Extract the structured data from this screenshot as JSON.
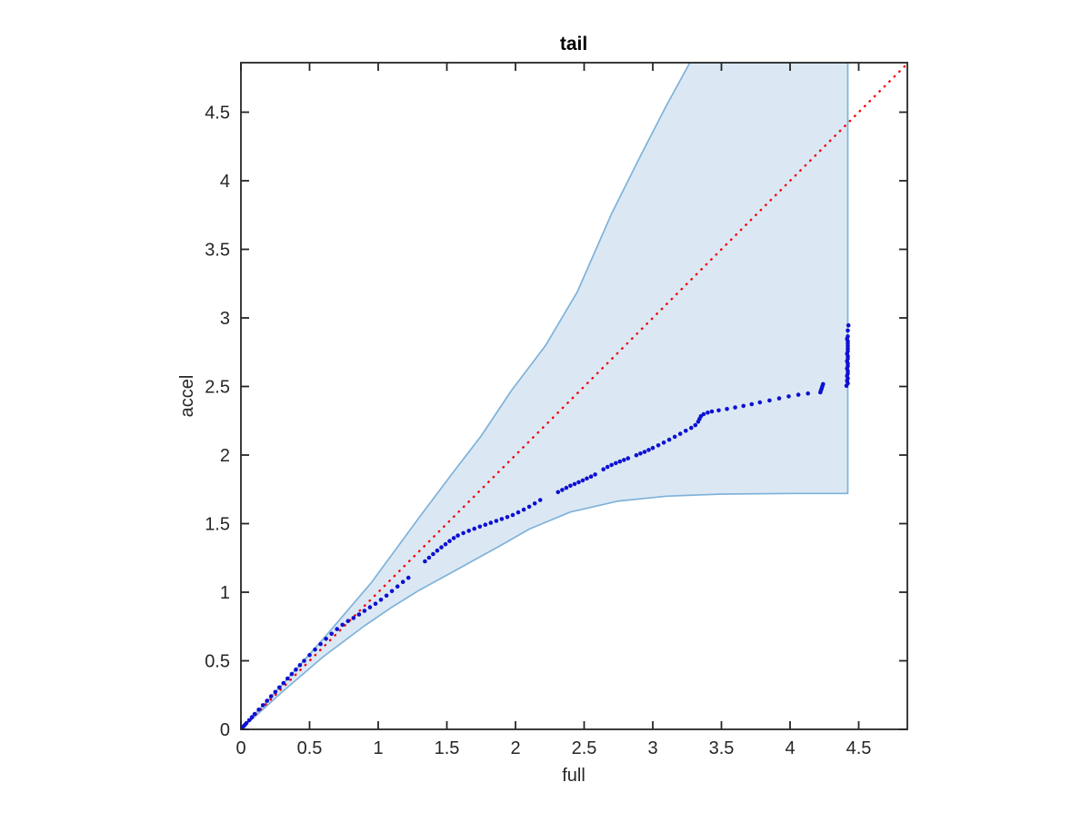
{
  "figure": {
    "title": "tail",
    "xlabel": "full",
    "ylabel": "accel"
  },
  "colors": {
    "band_fill": "#dbe8f4",
    "band_edge": "#7fb2d9",
    "point_color": "#0e10d2",
    "reference_line_color": "#f40000",
    "axis_color": "#262626",
    "background": "#ffffff"
  },
  "chart_data": {
    "type": "scatter",
    "title": "tail",
    "xlabel": "full",
    "ylabel": "accel",
    "xlim": [
      0,
      4.854
    ],
    "ylim": [
      0,
      4.861
    ],
    "grid": false,
    "legend_position": "none",
    "x_tick_values": [
      0,
      0.5,
      1,
      1.5,
      2,
      2.5,
      3,
      3.5,
      4,
      4.5
    ],
    "x_tick_labels": [
      "0",
      "0.5",
      "1",
      "1.5",
      "2",
      "2.5",
      "3",
      "3.5",
      "4",
      "4.5"
    ],
    "y_tick_values": [
      0,
      0.5,
      1,
      1.5,
      2,
      2.5,
      3,
      3.5,
      4,
      4.5
    ],
    "y_tick_labels": [
      "0",
      "0.5",
      "1",
      "1.5",
      "2",
      "2.5",
      "3",
      "3.5",
      "4",
      "4.5"
    ],
    "reference_line": {
      "name": "identity y = x",
      "style": "dotted",
      "color": "#f40000",
      "from": [
        0,
        0
      ],
      "to": [
        4.854,
        4.854
      ]
    },
    "confidence_band": {
      "fill": "#dbe8f4",
      "edge": "#7fb2d9",
      "right_edge_x": 4.42,
      "top_y": 4.861,
      "upper_envelope": [
        [
          0,
          0
        ],
        [
          0.3,
          0.325
        ],
        [
          0.6,
          0.66
        ],
        [
          0.95,
          1.07
        ],
        [
          1.31,
          1.56
        ],
        [
          1.55,
          1.88
        ],
        [
          1.75,
          2.14
        ],
        [
          1.97,
          2.47
        ],
        [
          2.22,
          2.8
        ],
        [
          2.45,
          3.19
        ],
        [
          2.7,
          3.76
        ],
        [
          2.9,
          4.16
        ],
        [
          3.1,
          4.55
        ],
        [
          3.27,
          4.861
        ]
      ],
      "lower_envelope": [
        [
          0,
          0
        ],
        [
          0.3,
          0.272
        ],
        [
          0.6,
          0.53
        ],
        [
          0.9,
          0.755
        ],
        [
          1.09,
          0.885
        ],
        [
          1.3,
          1.015
        ],
        [
          1.62,
          1.19
        ],
        [
          1.9,
          1.345
        ],
        [
          2.1,
          1.46
        ],
        [
          2.4,
          1.585
        ],
        [
          2.75,
          1.665
        ],
        [
          3.1,
          1.7
        ],
        [
          3.5,
          1.715
        ],
        [
          4.0,
          1.72
        ],
        [
          4.42,
          1.72
        ]
      ]
    },
    "series": [
      {
        "name": "tail vs full quantiles",
        "marker": "dot",
        "color": "#0e10d2",
        "points": [
          [
            0.005,
            0.006
          ],
          [
            0.01,
            0.012
          ],
          [
            0.02,
            0.023
          ],
          [
            0.03,
            0.034
          ],
          [
            0.04,
            0.045
          ],
          [
            0.06,
            0.067
          ],
          [
            0.08,
            0.089
          ],
          [
            0.1,
            0.112
          ],
          [
            0.13,
            0.144
          ],
          [
            0.16,
            0.176
          ],
          [
            0.19,
            0.208
          ],
          [
            0.22,
            0.241
          ],
          [
            0.25,
            0.273
          ],
          [
            0.28,
            0.306
          ],
          [
            0.31,
            0.338
          ],
          [
            0.34,
            0.371
          ],
          [
            0.37,
            0.403
          ],
          [
            0.4,
            0.436
          ],
          [
            0.43,
            0.468
          ],
          [
            0.46,
            0.5
          ],
          [
            0.5,
            0.542
          ],
          [
            0.54,
            0.582
          ],
          [
            0.58,
            0.622
          ],
          [
            0.62,
            0.66
          ],
          [
            0.66,
            0.697
          ],
          [
            0.7,
            0.731
          ],
          [
            0.74,
            0.762
          ],
          [
            0.78,
            0.79
          ],
          [
            0.82,
            0.812
          ],
          [
            0.86,
            0.838
          ],
          [
            0.9,
            0.864
          ],
          [
            0.94,
            0.89
          ],
          [
            0.98,
            0.916
          ],
          [
            1.02,
            0.945
          ],
          [
            1.06,
            0.975
          ],
          [
            1.1,
            1.008
          ],
          [
            1.14,
            1.042
          ],
          [
            1.18,
            1.075
          ],
          [
            1.22,
            1.105
          ],
          [
            1.34,
            1.225
          ],
          [
            1.37,
            1.252
          ],
          [
            1.4,
            1.278
          ],
          [
            1.43,
            1.303
          ],
          [
            1.46,
            1.327
          ],
          [
            1.49,
            1.35
          ],
          [
            1.52,
            1.373
          ],
          [
            1.55,
            1.395
          ],
          [
            1.58,
            1.413
          ],
          [
            1.62,
            1.431
          ],
          [
            1.66,
            1.448
          ],
          [
            1.7,
            1.463
          ],
          [
            1.74,
            1.478
          ],
          [
            1.78,
            1.492
          ],
          [
            1.82,
            1.506
          ],
          [
            1.86,
            1.52
          ],
          [
            1.9,
            1.534
          ],
          [
            1.94,
            1.548
          ],
          [
            1.98,
            1.563
          ],
          [
            2.02,
            1.582
          ],
          [
            2.06,
            1.602
          ],
          [
            2.1,
            1.623
          ],
          [
            2.14,
            1.647
          ],
          [
            2.18,
            1.672
          ],
          [
            2.31,
            1.73
          ],
          [
            2.34,
            1.746
          ],
          [
            2.37,
            1.761
          ],
          [
            2.4,
            1.776
          ],
          [
            2.43,
            1.789
          ],
          [
            2.46,
            1.802
          ],
          [
            2.49,
            1.815
          ],
          [
            2.52,
            1.829
          ],
          [
            2.55,
            1.843
          ],
          [
            2.58,
            1.858
          ],
          [
            2.64,
            1.896
          ],
          [
            2.67,
            1.913
          ],
          [
            2.7,
            1.928
          ],
          [
            2.73,
            1.941
          ],
          [
            2.76,
            1.953
          ],
          [
            2.79,
            1.964
          ],
          [
            2.82,
            1.976
          ],
          [
            2.88,
            1.999
          ],
          [
            2.91,
            2.011
          ],
          [
            2.94,
            2.023
          ],
          [
            2.97,
            2.037
          ],
          [
            3.0,
            2.052
          ],
          [
            3.04,
            2.071
          ],
          [
            3.08,
            2.091
          ],
          [
            3.12,
            2.112
          ],
          [
            3.16,
            2.133
          ],
          [
            3.2,
            2.155
          ],
          [
            3.24,
            2.177
          ],
          [
            3.28,
            2.198
          ],
          [
            3.31,
            2.218
          ],
          [
            3.33,
            2.243
          ],
          [
            3.34,
            2.263
          ],
          [
            3.35,
            2.283
          ],
          [
            3.37,
            2.298
          ],
          [
            3.4,
            2.309
          ],
          [
            3.43,
            2.318
          ],
          [
            3.48,
            2.326
          ],
          [
            3.54,
            2.336
          ],
          [
            3.6,
            2.347
          ],
          [
            3.66,
            2.358
          ],
          [
            3.72,
            2.371
          ],
          [
            3.78,
            2.384
          ],
          [
            3.85,
            2.398
          ],
          [
            3.92,
            2.413
          ],
          [
            3.99,
            2.428
          ],
          [
            4.06,
            2.44
          ],
          [
            4.13,
            2.449
          ],
          [
            4.22,
            2.457
          ],
          [
            4.225,
            2.472
          ],
          [
            4.23,
            2.487
          ],
          [
            4.235,
            2.502
          ],
          [
            4.24,
            2.517
          ],
          [
            4.41,
            2.505
          ],
          [
            4.42,
            2.523
          ],
          [
            4.415,
            2.541
          ],
          [
            4.42,
            2.559
          ],
          [
            4.415,
            2.577
          ],
          [
            4.42,
            2.595
          ],
          [
            4.42,
            2.613
          ],
          [
            4.415,
            2.631
          ],
          [
            4.42,
            2.649
          ],
          [
            4.42,
            2.667
          ],
          [
            4.415,
            2.685
          ],
          [
            4.42,
            2.703
          ],
          [
            4.42,
            2.721
          ],
          [
            4.415,
            2.739
          ],
          [
            4.42,
            2.757
          ],
          [
            4.42,
            2.775
          ],
          [
            4.42,
            2.793
          ],
          [
            4.42,
            2.811
          ],
          [
            4.42,
            2.829
          ],
          [
            4.415,
            2.847
          ],
          [
            4.42,
            2.865
          ],
          [
            4.42,
            2.908
          ],
          [
            4.425,
            2.946
          ]
        ]
      }
    ]
  }
}
